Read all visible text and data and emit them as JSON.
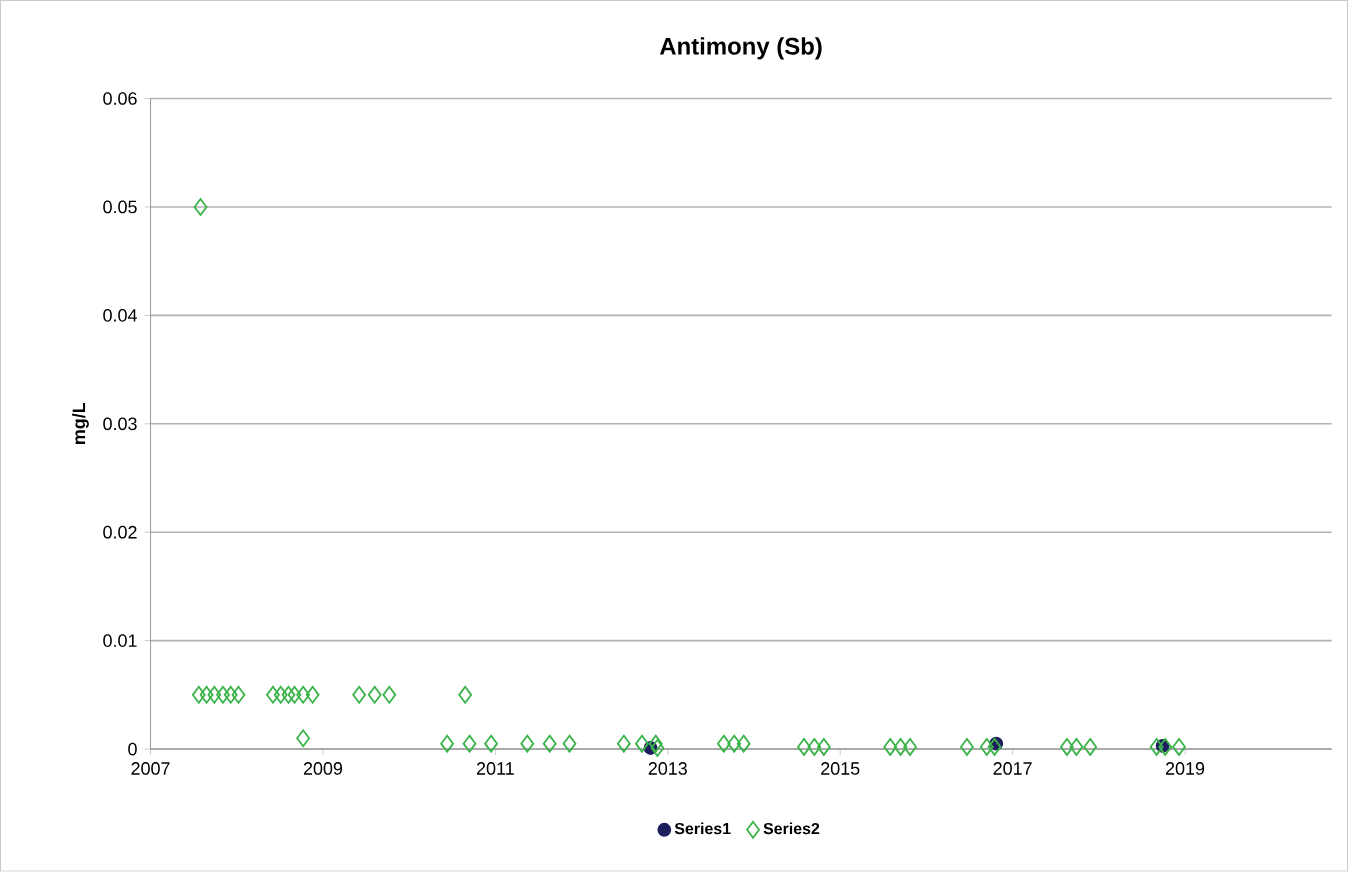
{
  "chart_data": {
    "type": "scatter",
    "title": "Antimony (Sb)",
    "ylabel": "mg/L",
    "xlim": [
      2007,
      2020.7
    ],
    "xticks": [
      2007,
      2009,
      2011,
      2013,
      2015,
      2017,
      2019
    ],
    "ylim": [
      0,
      0.06
    ],
    "yticks": [
      0,
      0.01,
      0.02,
      0.03,
      0.04,
      0.05,
      0.06
    ],
    "grid": "y",
    "legend": "bottom",
    "series": [
      {
        "name": "Series1",
        "color": "#1f1f5f",
        "marker": "circle",
        "x": [
          2012.8,
          2016.81,
          2018.74
        ],
        "values": [
          0.0001,
          0.0005,
          0.0003
        ]
      },
      {
        "name": "Series2",
        "color": "#3cb44b",
        "marker": "diamond",
        "x": [
          2007.58,
          2007.56,
          2007.65,
          2007.74,
          2007.84,
          2007.93,
          2008.02,
          2008.42,
          2008.51,
          2008.6,
          2008.67,
          2008.77,
          2008.88,
          2008.77,
          2009.42,
          2009.6,
          2009.77,
          2010.65,
          2010.44,
          2010.7,
          2010.95,
          2011.37,
          2011.63,
          2011.86,
          2012.49,
          2012.7,
          2012.86,
          2012.88,
          2013.65,
          2013.77,
          2013.88,
          2014.58,
          2014.7,
          2014.81,
          2015.58,
          2015.7,
          2015.81,
          2016.47,
          2016.7,
          2016.79,
          2017.63,
          2017.74,
          2017.9,
          2018.67,
          2018.77,
          2018.93
        ],
        "values": [
          0.05,
          0.005,
          0.005,
          0.005,
          0.005,
          0.005,
          0.005,
          0.005,
          0.005,
          0.005,
          0.005,
          0.005,
          0.005,
          0.001,
          0.005,
          0.005,
          0.005,
          0.005,
          0.0005,
          0.0005,
          0.0005,
          0.0005,
          0.0005,
          0.0005,
          0.0005,
          0.0005,
          0.0005,
          0.0001,
          0.0005,
          0.0005,
          0.0005,
          0.0002,
          0.0002,
          0.0002,
          0.0002,
          0.0002,
          0.0002,
          0.0002,
          0.0002,
          0.0002,
          0.0002,
          0.0002,
          0.0002,
          0.0002,
          0.0002,
          0.0002
        ]
      }
    ]
  }
}
